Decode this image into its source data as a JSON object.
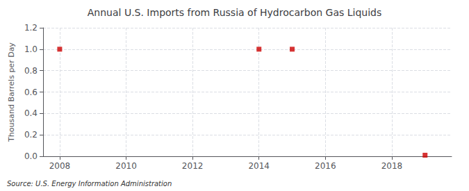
{
  "chart_data": {
    "type": "scatter",
    "title": "Annual U.S. Imports from Russia of Hydrocarbon Gas Liquids",
    "ylabel": "Thousand Barrels per Day",
    "annotation": "Source: U.S. Energy Information Administration",
    "x": [
      2008,
      2014,
      2015,
      2019
    ],
    "values": [
      1.0,
      1.0,
      1.0,
      0.01
    ],
    "color": "#cc0000",
    "marker": "square",
    "xlim": [
      2007.5,
      2019.8
    ],
    "xticks": [
      2008,
      2010,
      2012,
      2014,
      2016,
      2018
    ],
    "ylim": [
      0.0,
      1.2
    ],
    "yticks": [
      {
        "value": 0.0,
        "label": "0.0"
      },
      0.2,
      0.4,
      0.6,
      0.8,
      {
        "value": 1.0,
        "label": "1.0"
      },
      1.2
    ],
    "grid": true
  }
}
